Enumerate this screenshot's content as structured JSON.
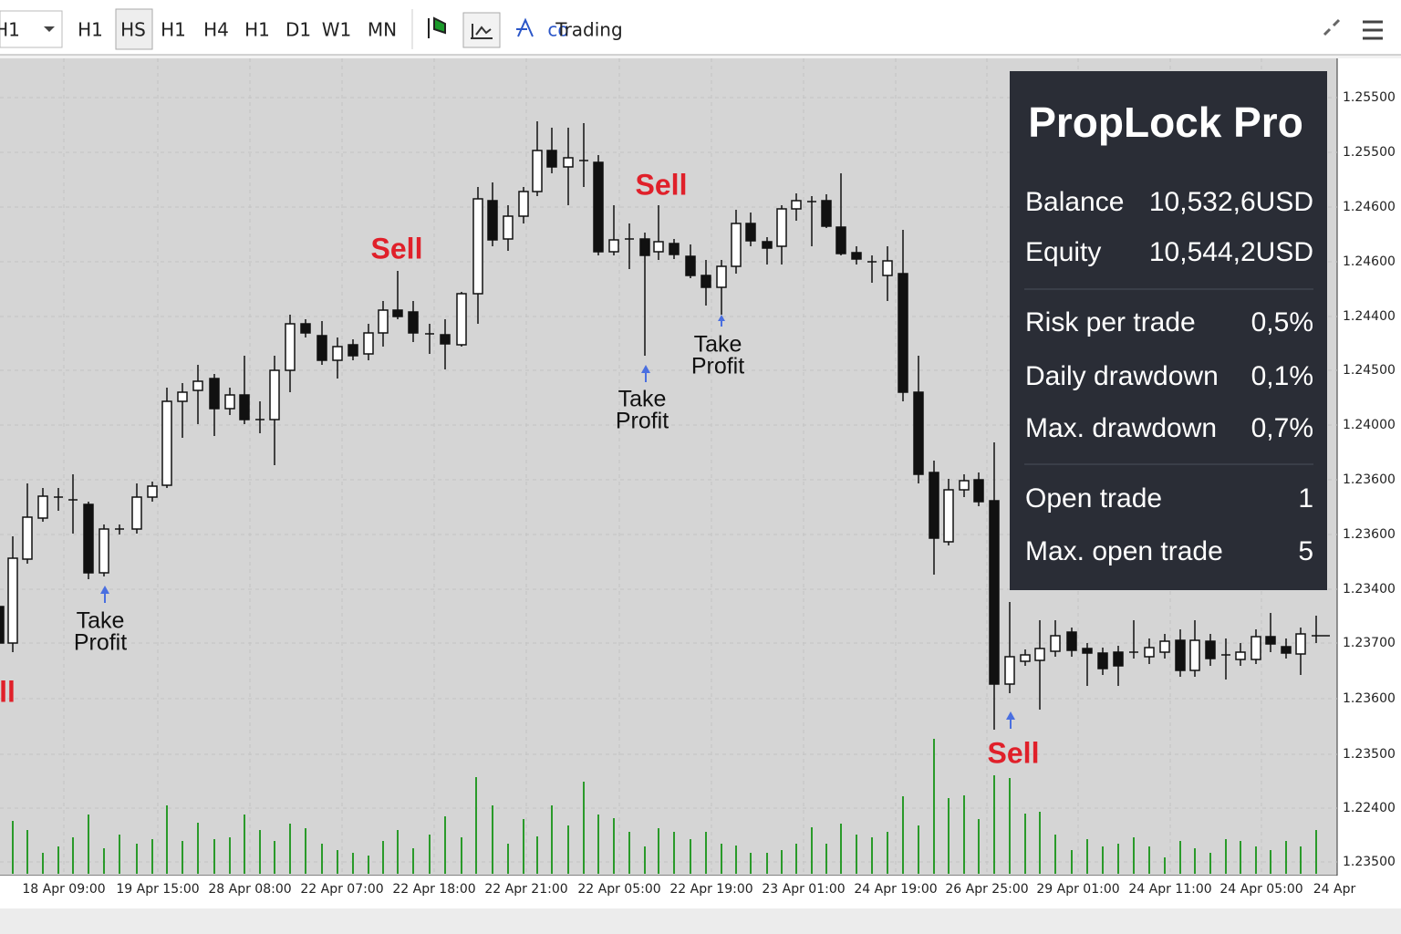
{
  "toolbar": {
    "timeframes": [
      "H1",
      "H1",
      "HS",
      "H1",
      "H4",
      "H1",
      "D1",
      "W1",
      "MN"
    ],
    "label": "Trading"
  },
  "panel": {
    "title": "PropLock Pro",
    "rows": [
      [
        "Balance",
        "10,532,6USD"
      ],
      [
        "Equity",
        "10,544,2USD"
      ],
      [
        "Risk per trade",
        "0,5%"
      ],
      [
        "Daily drawdown",
        "0,1%"
      ],
      [
        "Max. drawdown",
        "0,7%"
      ],
      [
        "Open trade",
        "1"
      ],
      [
        "Max. open trade",
        "5"
      ]
    ]
  },
  "price_axis": [
    "1.25500",
    "1.25500",
    "1.24600",
    "1.24600",
    "1.24400",
    "1.24500",
    "1.24000",
    "1.23600",
    "1.23600",
    "1.23400",
    "1.23700",
    "1.23600",
    "1.23500",
    "1.22400",
    "1.23500"
  ],
  "time_axis": [
    "18 Apr 09:00",
    "19 Apr 15:00",
    "28 Apr 08:00",
    "22 Apr 07:00",
    "22 Apr 18:00",
    "22 Apr 21:00",
    "22 Apr 05:00",
    "22 Apr 19:00",
    "23 Apr 01:00",
    "24 Apr 19:00",
    "26 Apr 25:00",
    "29 Apr 01:00",
    "24 Apr 11:00",
    "24 Apr 05:00",
    "24 Apr"
  ],
  "annotations": {
    "sell": [
      "ll",
      "Sell",
      "Sell",
      "Sell"
    ],
    "take_profit": [
      [
        "Take",
        "Profit"
      ],
      [
        "Take",
        "Profit"
      ],
      [
        "Take",
        "Profit"
      ]
    ]
  }
}
